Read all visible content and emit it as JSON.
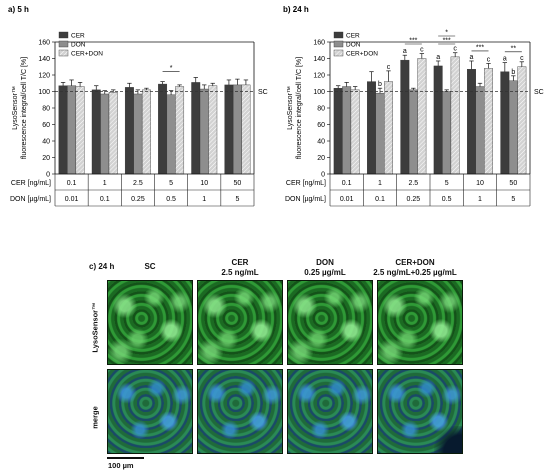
{
  "colors": {
    "CER": "#3d3d3d",
    "DON": "#8e8e8e",
    "CER+DON": "#d2d2d2",
    "sc_line": "#333333"
  },
  "chart_data": [
    {
      "type": "bar",
      "panel": "a) 5 h",
      "ylabel": "LysoSensor™ fluorescence integral/cell T/C [%]",
      "ylim": [
        0,
        160
      ],
      "yticks": [
        0,
        20,
        40,
        60,
        80,
        100,
        120,
        140,
        160
      ],
      "reference_line": {
        "value": 100,
        "label": "SC"
      },
      "legend": [
        "CER",
        "DON",
        "CER+DON"
      ],
      "legend_position": "top-left",
      "row_labels": [
        "CER [ng/mL]",
        "DON [µg/mL]"
      ],
      "cer_row": [
        "0.1",
        "1",
        "2.5",
        "5",
        "10",
        "50"
      ],
      "don_row": [
        "0.01",
        "0.1",
        "0.25",
        "0.5",
        "1",
        "5"
      ],
      "series": [
        {
          "name": "CER",
          "values": [
            107,
            102,
            105,
            109,
            111,
            108
          ],
          "errors": [
            4,
            5,
            5,
            3,
            6,
            6
          ]
        },
        {
          "name": "DON",
          "values": [
            107,
            97,
            97,
            96,
            103,
            108
          ],
          "errors": [
            7,
            4,
            5,
            5,
            5,
            7
          ]
        },
        {
          "name": "CER+DON",
          "values": [
            106,
            99,
            102,
            106,
            107,
            108
          ],
          "errors": [
            5,
            3,
            2,
            2,
            3,
            6
          ]
        }
      ],
      "significance": [
        {
          "group": 3,
          "text": "*"
        }
      ],
      "letters": []
    },
    {
      "type": "bar",
      "panel": "b) 24 h",
      "ylabel": "LysoSensor™ fluorescence integral/cell T/C [%]",
      "ylim": [
        0,
        160
      ],
      "yticks": [
        0,
        20,
        40,
        60,
        80,
        100,
        120,
        140,
        160
      ],
      "reference_line": {
        "value": 100,
        "label": "SC"
      },
      "legend": [
        "CER",
        "DON",
        "CER+DON"
      ],
      "legend_position": "top-left",
      "row_labels": [
        "CER [ng/mL]",
        "DON [µg/mL]"
      ],
      "cer_row": [
        "0.1",
        "1",
        "2.5",
        "5",
        "10",
        "50"
      ],
      "don_row": [
        "0.01",
        "0.1",
        "0.25",
        "0.5",
        "1",
        "5"
      ],
      "series": [
        {
          "name": "CER",
          "values": [
            104,
            112,
            138,
            131,
            127,
            124
          ],
          "errors": [
            3,
            12,
            6,
            6,
            10,
            11
          ]
        },
        {
          "name": "DON",
          "values": [
            106,
            98,
            102,
            100,
            106,
            113
          ],
          "errors": [
            5,
            6,
            2,
            2,
            4,
            6
          ]
        },
        {
          "name": "CER+DON",
          "values": [
            102,
            112,
            140,
            142,
            128,
            130
          ],
          "errors": [
            4,
            13,
            6,
            5,
            6,
            6
          ]
        }
      ],
      "significance": [
        {
          "group": 2,
          "text": "***",
          "level": 0
        },
        {
          "group": 3,
          "text": "***",
          "level": 0
        },
        {
          "group": 3,
          "text": "*",
          "level": 1
        },
        {
          "group": 4,
          "text": "***",
          "level": 0
        },
        {
          "group": 5,
          "text": "**",
          "level": 0
        }
      ],
      "letters": [
        {
          "group": 1,
          "series": 1,
          "text": "b"
        },
        {
          "group": 1,
          "series": 2,
          "text": "c"
        },
        {
          "group": 2,
          "series": 0,
          "text": "a"
        },
        {
          "group": 2,
          "series": 2,
          "text": "c"
        },
        {
          "group": 3,
          "series": 0,
          "text": "a"
        },
        {
          "group": 3,
          "series": 2,
          "text": "c"
        },
        {
          "group": 4,
          "series": 0,
          "text": "a"
        },
        {
          "group": 4,
          "series": 2,
          "text": "c"
        },
        {
          "group": 5,
          "series": 0,
          "text": "a"
        },
        {
          "group": 5,
          "series": 1,
          "text": "b"
        },
        {
          "group": 5,
          "series": 2,
          "text": "c"
        }
      ]
    }
  ],
  "panel_c": {
    "label": "c) 24 h",
    "columns": [
      {
        "title": "SC",
        "subtitle": ""
      },
      {
        "title": "CER",
        "subtitle": "2.5 ng/mL"
      },
      {
        "title": "DON",
        "subtitle": "0.25 µg/mL"
      },
      {
        "title": "CER+DON",
        "subtitle": "2.5 ng/mL+0.25 µg/mL"
      }
    ],
    "rows": [
      "LysoSensor™",
      "merge"
    ],
    "scale_bar": "100 µm"
  }
}
